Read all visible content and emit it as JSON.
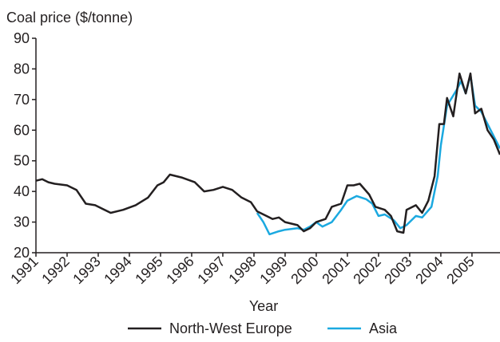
{
  "chart_data": {
    "type": "line",
    "title": "Coal price ($/tonne)",
    "x_label": "Year",
    "xlim": [
      1991,
      2005.9
    ],
    "xticks": [
      1991,
      1992,
      1993,
      1994,
      1995,
      1996,
      1997,
      1998,
      1999,
      2000,
      2001,
      2002,
      2003,
      2004,
      2005
    ],
    "ylim": [
      20,
      90
    ],
    "yticks": [
      20,
      30,
      40,
      50,
      60,
      70,
      80,
      90
    ],
    "legend": "bottom",
    "series": [
      {
        "name": "North-West Europe",
        "color": "#231f20",
        "x": [
          1991,
          1991.2,
          1991.4,
          1991.6,
          1992,
          1992.3,
          1992.6,
          1992.9,
          1993.1,
          1993.4,
          1993.8,
          1994.2,
          1994.6,
          1994.9,
          1995.1,
          1995.3,
          1995.7,
          1996.1,
          1996.4,
          1996.7,
          1997,
          1997.3,
          1997.6,
          1997.9,
          1998.1,
          1998.4,
          1998.6,
          1998.8,
          1999,
          1999.4,
          1999.6,
          1999.8,
          2000,
          2000.3,
          2000.5,
          2000.8,
          2001,
          2001.2,
          2001.4,
          2001.7,
          2001.9,
          2002.2,
          2002.4,
          2002.6,
          2002.8,
          2002.9,
          2003.2,
          2003.4,
          2003.6,
          2003.8,
          2003.95,
          2004.1,
          2004.2,
          2004.4,
          2004.6,
          2004.8,
          2004.95,
          2005.1,
          2005.3,
          2005.5,
          2005.7,
          2005.9
        ],
        "values": [
          43.5,
          44,
          43,
          42.5,
          42,
          40.5,
          36,
          35.5,
          34.5,
          33,
          34,
          35.5,
          38,
          42,
          43,
          45.5,
          44.5,
          43,
          40,
          40.5,
          41.5,
          40.5,
          38,
          36.5,
          33.5,
          32,
          31,
          31.5,
          30,
          29,
          27,
          28,
          30,
          31,
          35,
          36,
          42,
          42,
          42.5,
          39,
          35,
          34,
          32,
          27,
          26.5,
          34,
          35.5,
          33,
          37,
          45,
          62,
          62,
          70.5,
          64.5,
          78.5,
          72,
          78.5,
          65.5,
          67,
          60,
          57,
          52
        ]
      },
      {
        "name": "Asia",
        "color": "#1ba9e0",
        "x": [
          1998.1,
          1998.3,
          1998.5,
          1998.8,
          1999,
          1999.4,
          1999.6,
          1999.8,
          2000,
          2000.2,
          2000.5,
          2000.8,
          2001,
          2001.3,
          2001.6,
          2001.8,
          2002,
          2002.2,
          2002.5,
          2002.7,
          2002.9,
          2003.2,
          2003.4,
          2003.7,
          2003.9,
          2004,
          2004.2,
          2004.5,
          2004.65,
          2004.8,
          2004.95,
          2005.1,
          2005.3,
          2005.5,
          2005.7,
          2005.9
        ],
        "values": [
          33,
          30,
          26,
          27,
          27.5,
          28,
          27.5,
          28.5,
          30,
          28.5,
          30,
          34,
          37,
          38.5,
          37.5,
          36,
          32,
          32.5,
          30.5,
          28,
          29,
          32,
          31.5,
          35,
          45,
          55,
          68,
          73,
          76,
          72,
          78,
          68,
          66,
          62,
          58,
          54
        ]
      }
    ]
  }
}
